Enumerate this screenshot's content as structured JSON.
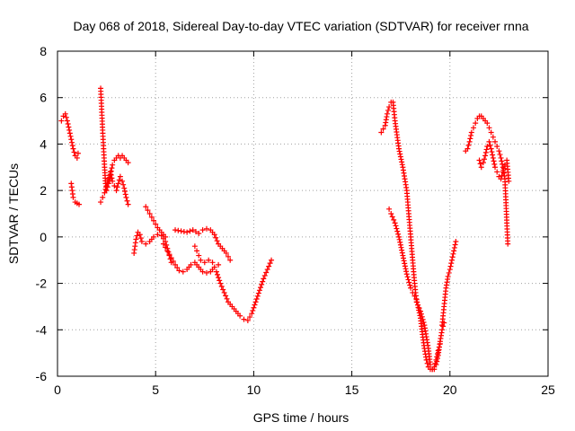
{
  "chart_data": {
    "type": "scatter",
    "title": "Day 068 of 2018, Sidereal Day-to-day VTEC variation (SDTVAR) for receiver rnna",
    "xlabel": "GPS time / hours",
    "ylabel": "SDTVAR / TECUs",
    "xlim": [
      0,
      25
    ],
    "ylim": [
      -6,
      8
    ],
    "xticks": [
      0,
      5,
      10,
      15,
      20,
      25
    ],
    "yticks": [
      -6,
      -4,
      -2,
      0,
      2,
      4,
      6,
      8
    ],
    "grid": true,
    "marker": "+",
    "color": "#ff0000",
    "segments": [
      [
        [
          0.2,
          5.0
        ],
        [
          0.3,
          5.2
        ],
        [
          0.4,
          5.3
        ],
        [
          0.5,
          5.0
        ],
        [
          0.6,
          4.6
        ],
        [
          0.7,
          4.2
        ],
        [
          0.8,
          3.8
        ],
        [
          0.9,
          3.5
        ],
        [
          1.0,
          3.4
        ],
        [
          1.05,
          3.6
        ]
      ],
      [
        [
          0.7,
          2.3
        ],
        [
          0.75,
          2.0
        ],
        [
          0.8,
          1.7
        ],
        [
          0.9,
          1.5
        ],
        [
          1.0,
          1.45
        ],
        [
          1.1,
          1.4
        ]
      ],
      [
        [
          2.2,
          6.4
        ],
        [
          2.25,
          5.5
        ],
        [
          2.3,
          4.6
        ],
        [
          2.35,
          3.8
        ],
        [
          2.4,
          3.0
        ],
        [
          2.45,
          2.3
        ],
        [
          2.5,
          2.0
        ],
        [
          2.6,
          2.3
        ],
        [
          2.7,
          2.7
        ],
        [
          2.8,
          3.1
        ],
        [
          2.9,
          3.3
        ],
        [
          3.0,
          3.4
        ],
        [
          3.1,
          3.5
        ],
        [
          3.2,
          3.4
        ],
        [
          3.3,
          3.5
        ],
        [
          3.4,
          3.4
        ],
        [
          3.5,
          3.3
        ],
        [
          3.6,
          3.2
        ]
      ],
      [
        [
          2.2,
          1.5
        ],
        [
          2.3,
          1.7
        ],
        [
          2.4,
          1.9
        ],
        [
          2.5,
          2.2
        ],
        [
          2.6,
          2.5
        ],
        [
          2.7,
          2.8
        ],
        [
          2.8,
          2.4
        ],
        [
          2.9,
          2.2
        ],
        [
          3.0,
          2.0
        ],
        [
          3.1,
          2.3
        ],
        [
          3.2,
          2.6
        ],
        [
          3.3,
          2.4
        ],
        [
          3.4,
          2.1
        ],
        [
          3.5,
          1.7
        ],
        [
          3.6,
          1.4
        ]
      ],
      [
        [
          3.9,
          -0.7
        ],
        [
          3.95,
          -0.4
        ],
        [
          4.0,
          -0.1
        ],
        [
          4.1,
          0.2
        ],
        [
          4.2,
          0.1
        ],
        [
          4.3,
          -0.2
        ],
        [
          4.5,
          -0.3
        ],
        [
          4.7,
          -0.2
        ],
        [
          4.9,
          0.0
        ],
        [
          5.1,
          0.1
        ],
        [
          5.3,
          0.05
        ],
        [
          5.5,
          -0.2
        ],
        [
          5.6,
          -0.5
        ],
        [
          5.7,
          -0.8
        ],
        [
          5.8,
          -1.1
        ]
      ],
      [
        [
          4.5,
          1.3
        ],
        [
          4.7,
          1.0
        ],
        [
          4.9,
          0.7
        ],
        [
          5.1,
          0.4
        ],
        [
          5.3,
          0.2
        ],
        [
          5.5,
          0.0
        ]
      ],
      [
        [
          5.4,
          -0.3
        ],
        [
          5.6,
          -0.6
        ],
        [
          5.8,
          -0.9
        ],
        [
          6.0,
          -1.2
        ],
        [
          6.2,
          -1.45
        ],
        [
          6.4,
          -1.5
        ],
        [
          6.6,
          -1.4
        ],
        [
          6.8,
          -1.2
        ],
        [
          7.0,
          -1.1
        ],
        [
          7.2,
          -1.3
        ],
        [
          7.4,
          -1.5
        ],
        [
          7.6,
          -1.55
        ],
        [
          7.8,
          -1.5
        ],
        [
          8.0,
          -1.3
        ],
        [
          8.2,
          -1.2
        ]
      ],
      [
        [
          6.0,
          0.3
        ],
        [
          6.3,
          0.25
        ],
        [
          6.6,
          0.2
        ],
        [
          6.9,
          0.3
        ],
        [
          7.2,
          0.15
        ],
        [
          7.4,
          0.3
        ],
        [
          7.6,
          0.35
        ],
        [
          7.8,
          0.3
        ],
        [
          8.0,
          0.1
        ],
        [
          8.2,
          -0.3
        ],
        [
          8.4,
          -0.5
        ],
        [
          8.6,
          -0.7
        ],
        [
          8.8,
          -1.0
        ]
      ],
      [
        [
          7.0,
          -0.4
        ],
        [
          7.1,
          -0.6
        ],
        [
          7.2,
          -0.8
        ],
        [
          7.3,
          -1.0
        ],
        [
          7.5,
          -1.1
        ],
        [
          7.7,
          -1.0
        ],
        [
          7.9,
          -1.1
        ]
      ],
      [
        [
          8.1,
          -1.5
        ],
        [
          8.3,
          -2.0
        ],
        [
          8.5,
          -2.4
        ],
        [
          8.7,
          -2.8
        ],
        [
          8.9,
          -3.0
        ],
        [
          9.1,
          -3.2
        ],
        [
          9.3,
          -3.4
        ],
        [
          9.5,
          -3.55
        ],
        [
          9.7,
          -3.6
        ],
        [
          9.9,
          -3.3
        ],
        [
          10.1,
          -2.8
        ],
        [
          10.3,
          -2.3
        ],
        [
          10.5,
          -1.8
        ],
        [
          10.7,
          -1.4
        ],
        [
          10.9,
          -1.0
        ]
      ],
      [
        [
          16.5,
          4.5
        ],
        [
          16.7,
          4.8
        ],
        [
          16.8,
          5.3
        ],
        [
          16.9,
          5.6
        ],
        [
          17.0,
          5.8
        ],
        [
          17.1,
          5.8
        ],
        [
          17.2,
          5.0
        ],
        [
          17.3,
          4.4
        ],
        [
          17.4,
          3.8
        ],
        [
          17.6,
          3.0
        ],
        [
          17.8,
          2.0
        ],
        [
          17.9,
          1.0
        ],
        [
          18.0,
          0.0
        ],
        [
          18.1,
          -1.0
        ],
        [
          18.2,
          -2.0
        ],
        [
          18.3,
          -2.8
        ],
        [
          18.5,
          -3.2
        ],
        [
          18.7,
          -3.8
        ],
        [
          18.9,
          -4.8
        ],
        [
          19.0,
          -5.5
        ],
        [
          19.1,
          -5.7
        ],
        [
          19.2,
          -5.7
        ],
        [
          19.3,
          -5.5
        ],
        [
          19.4,
          -5.1
        ],
        [
          19.5,
          -4.5
        ],
        [
          19.6,
          -4.0
        ],
        [
          19.7,
          -3.7
        ]
      ],
      [
        [
          16.9,
          1.2
        ],
        [
          17.0,
          1.0
        ],
        [
          17.2,
          0.6
        ],
        [
          17.4,
          0.0
        ],
        [
          17.6,
          -0.8
        ],
        [
          17.8,
          -1.6
        ],
        [
          18.0,
          -2.2
        ],
        [
          18.1,
          -2.4
        ],
        [
          18.3,
          -2.7
        ],
        [
          18.5,
          -3.5
        ],
        [
          18.6,
          -4.2
        ],
        [
          18.7,
          -4.8
        ],
        [
          18.8,
          -5.3
        ],
        [
          18.9,
          -5.6
        ],
        [
          19.0,
          -5.7
        ],
        [
          19.1,
          -5.7
        ],
        [
          19.2,
          -5.6
        ],
        [
          19.3,
          -5.3
        ],
        [
          19.4,
          -4.9
        ],
        [
          19.5,
          -4.6
        ]
      ],
      [
        [
          19.6,
          -3.8
        ],
        [
          19.7,
          -3.0
        ],
        [
          19.8,
          -2.2
        ],
        [
          19.9,
          -1.7
        ],
        [
          20.0,
          -1.4
        ],
        [
          20.1,
          -1.0
        ],
        [
          20.2,
          -0.6
        ],
        [
          20.3,
          -0.2
        ]
      ],
      [
        [
          20.8,
          3.7
        ],
        [
          20.9,
          3.8
        ],
        [
          21.0,
          4.1
        ],
        [
          21.1,
          4.5
        ],
        [
          21.2,
          4.7
        ],
        [
          21.3,
          4.9
        ],
        [
          21.4,
          5.1
        ],
        [
          21.5,
          5.2
        ],
        [
          21.6,
          5.2
        ],
        [
          21.7,
          5.1
        ],
        [
          21.8,
          5.0
        ],
        [
          21.9,
          4.9
        ],
        [
          22.0,
          4.7
        ],
        [
          22.1,
          4.5
        ],
        [
          22.2,
          4.3
        ],
        [
          22.3,
          4.1
        ],
        [
          22.4,
          3.9
        ],
        [
          22.5,
          3.7
        ],
        [
          22.6,
          3.4
        ],
        [
          22.7,
          3.0
        ],
        [
          22.8,
          2.5
        ],
        [
          22.85,
          1.6
        ],
        [
          22.9,
          0.6
        ],
        [
          22.95,
          -0.3
        ]
      ],
      [
        [
          21.5,
          3.3
        ],
        [
          21.6,
          3.0
        ],
        [
          21.7,
          3.2
        ],
        [
          21.8,
          3.5
        ],
        [
          21.9,
          3.9
        ],
        [
          22.0,
          4.1
        ],
        [
          22.1,
          3.8
        ],
        [
          22.2,
          3.4
        ],
        [
          22.3,
          3.0
        ],
        [
          22.4,
          2.8
        ],
        [
          22.5,
          2.6
        ],
        [
          22.6,
          2.5
        ],
        [
          22.7,
          2.8
        ],
        [
          22.8,
          3.1
        ],
        [
          22.9,
          3.3
        ],
        [
          23.0,
          2.4
        ]
      ]
    ]
  }
}
